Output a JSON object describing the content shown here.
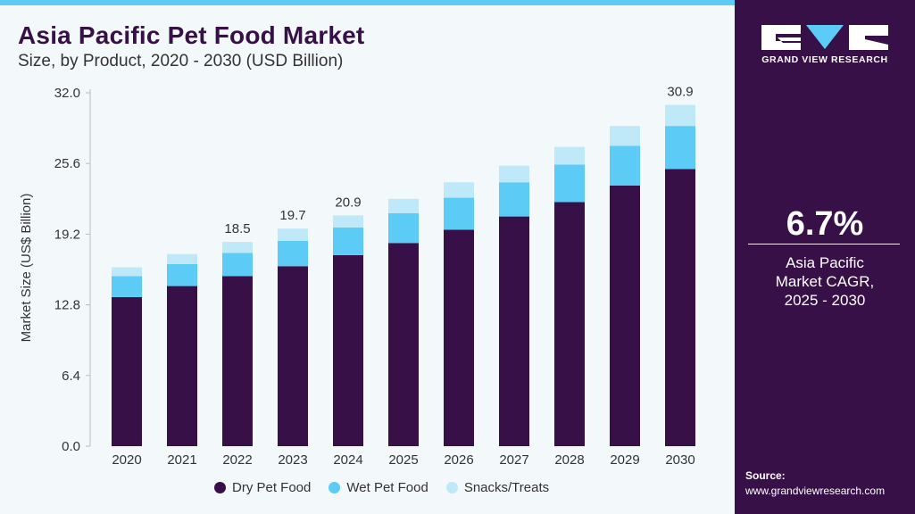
{
  "header": {
    "title": "Asia Pacific Pet Food Market",
    "subtitle": "Size, by Product, 2020 - 2030 (USD Billion)"
  },
  "panel": {
    "logo_text": "GRAND VIEW RESEARCH",
    "cagr_value": "6.7%",
    "cagr_label_1": "Asia Pacific",
    "cagr_label_2": "Market CAGR,",
    "cagr_label_3": "2025 - 2030",
    "source_label": "Source:",
    "source_url": "www.grandviewresearch.com"
  },
  "colors": {
    "brand": "#371048",
    "accent": "#5ccbf6",
    "light": "#bfe9f9"
  },
  "chart_data": {
    "type": "bar",
    "stacked": true,
    "title": "Asia Pacific Pet Food Market",
    "ylabel": "Market Size (US$ Billion)",
    "xlabel": "",
    "ylim": [
      0,
      32
    ],
    "yticks": [
      "0.0",
      "6.4",
      "12.8",
      "19.2",
      "25.6",
      "32.0"
    ],
    "grid": false,
    "legend": "bottom",
    "categories": [
      "2020",
      "2021",
      "2022",
      "2023",
      "2024",
      "2025",
      "2026",
      "2027",
      "2028",
      "2029",
      "2030"
    ],
    "series": [
      {
        "name": "Dry Pet Food",
        "color": "#371048",
        "values": [
          13.5,
          14.5,
          15.4,
          16.3,
          17.3,
          18.4,
          19.6,
          20.8,
          22.1,
          23.6,
          25.1
        ]
      },
      {
        "name": "Wet Pet Food",
        "color": "#5ccbf6",
        "values": [
          1.9,
          2.0,
          2.1,
          2.3,
          2.5,
          2.7,
          2.9,
          3.1,
          3.4,
          3.6,
          3.9
        ]
      },
      {
        "name": "Snacks/Treats",
        "color": "#bfe9f9",
        "values": [
          0.8,
          0.9,
          1.0,
          1.1,
          1.1,
          1.3,
          1.4,
          1.5,
          1.6,
          1.8,
          1.9
        ]
      }
    ],
    "data_labels": {
      "2022": "18.5",
      "2023": "19.7",
      "2024": "20.9",
      "2030": "30.9"
    }
  }
}
